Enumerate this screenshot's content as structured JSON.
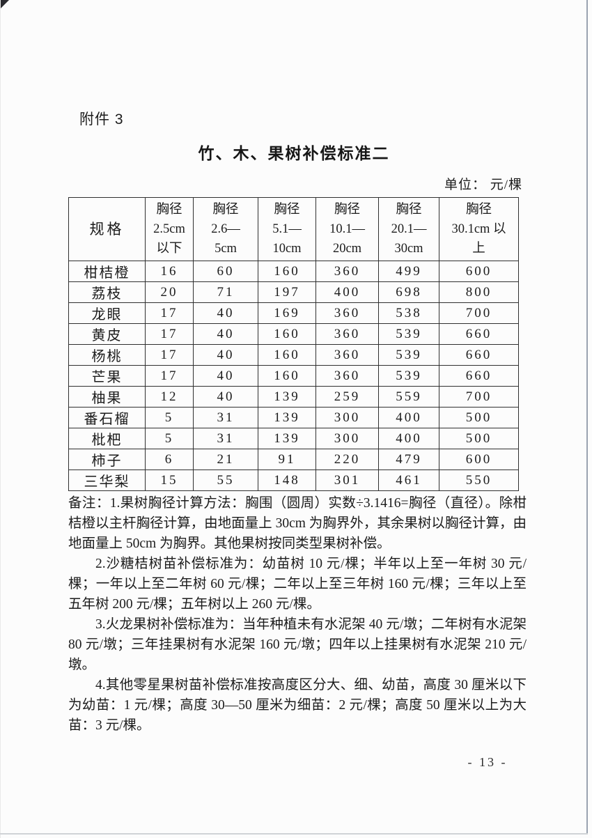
{
  "page": {
    "attachment_label": "附件 3",
    "title": "竹、木、果树补偿标准二",
    "unit_label": "单位： 元/棵",
    "page_number": "- 13 -"
  },
  "table": {
    "spec_header": "规格",
    "headers": [
      {
        "lines": [
          "胸径",
          "2.5cm",
          "以下"
        ]
      },
      {
        "lines": [
          "胸径",
          "2.6—",
          "5cm"
        ]
      },
      {
        "lines": [
          "胸径",
          "5.1—",
          "10cm"
        ]
      },
      {
        "lines": [
          "胸径",
          "10.1—",
          "20cm"
        ]
      },
      {
        "lines": [
          "胸径",
          "20.1—",
          "30cm"
        ]
      },
      {
        "lines": [
          "胸径",
          "30.1cm 以",
          "上"
        ]
      }
    ],
    "rows": [
      {
        "name": "柑桔橙",
        "values": [
          "16",
          "60",
          "160",
          "360",
          "499",
          "600"
        ]
      },
      {
        "name": "荔枝",
        "values": [
          "20",
          "71",
          "197",
          "400",
          "698",
          "800"
        ]
      },
      {
        "name": "龙眼",
        "values": [
          "17",
          "40",
          "169",
          "360",
          "538",
          "700"
        ]
      },
      {
        "name": "黄皮",
        "values": [
          "17",
          "40",
          "160",
          "360",
          "539",
          "660"
        ]
      },
      {
        "name": "杨桃",
        "values": [
          "17",
          "40",
          "160",
          "360",
          "539",
          "660"
        ]
      },
      {
        "name": "芒果",
        "values": [
          "17",
          "40",
          "160",
          "360",
          "539",
          "660"
        ]
      },
      {
        "name": "柚果",
        "values": [
          "12",
          "40",
          "139",
          "259",
          "559",
          "700"
        ]
      },
      {
        "name": "番石榴",
        "values": [
          "5",
          "31",
          "139",
          "300",
          "400",
          "500"
        ]
      },
      {
        "name": "枇杷",
        "values": [
          "5",
          "31",
          "139",
          "300",
          "400",
          "500"
        ]
      },
      {
        "name": "柿子",
        "values": [
          "6",
          "21",
          "91",
          "220",
          "479",
          "600"
        ]
      },
      {
        "name": "三华梨",
        "values": [
          "15",
          "55",
          "148",
          "301",
          "461",
          "550"
        ]
      }
    ]
  },
  "notes": {
    "paragraphs": [
      "备注：1.果树胸径计算方法：胸围（圆周）实数÷3.1416=胸径（直径）。除柑桔橙以主杆胸径计算，由地面量上 30cm 为胸界外，其余果树以胸径计算，由地面量上 50cm 为胸界。其他果树按同类型果树补偿。",
      "2.沙糖桔树苗补偿标准为：幼苗树 10 元/棵；半年以上至一年树 30 元/棵；一年以上至二年树 60 元/棵；二年以上至三年树 160 元/棵；三年以上至五年树 200 元/棵；五年树以上 260 元/棵。",
      "3.火龙果树补偿标准为：当年种植未有水泥架 40 元/墩；二年树有水泥架 80 元/墩；三年挂果树有水泥架 160 元/墩；四年以上挂果树有水泥架 210 元/墩。",
      "4.其他零星果树苗补偿标准按高度区分大、细、幼苗，高度 30 厘米以下为幼苗：1 元/棵；高度 30—50 厘米为细苗：2 元/棵；高度 50 厘米以上为大苗：3 元/棵。"
    ]
  }
}
